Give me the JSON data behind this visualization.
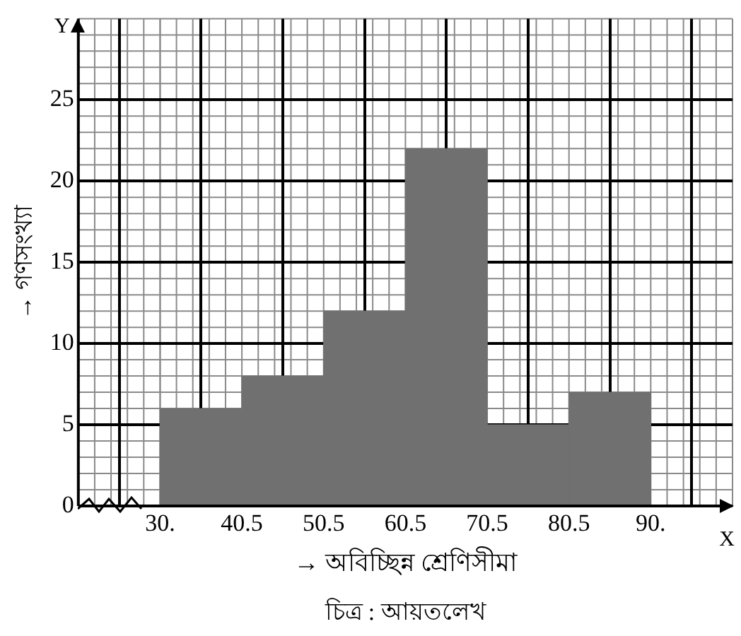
{
  "chart_data": {
    "type": "histogram",
    "xlabel": "→ অবিচ্ছিন্ন শ্রেণিসীমা",
    "ylabel": "→ গণসংখ্যা",
    "annotations": [
      "Y",
      "X",
      "চিত্র : আয়তলেখ"
    ],
    "bins": [
      30.5,
      40.5,
      50.5,
      60.5,
      70.5,
      80.5,
      90.5
    ],
    "values": [
      6,
      8,
      12,
      22,
      5,
      7
    ],
    "color": "#707070",
    "xlim": [
      20.5,
      100.5
    ],
    "xticks": [
      {
        "value": 30.5,
        "label": "30."
      },
      40.5,
      50.5,
      60.5,
      70.5,
      80.5,
      {
        "value": 90.5,
        "label": "90."
      }
    ],
    "ylim": [
      0,
      30
    ],
    "yticks": [
      0,
      5,
      10,
      15,
      20,
      25
    ],
    "grid": true,
    "legend": false
  }
}
